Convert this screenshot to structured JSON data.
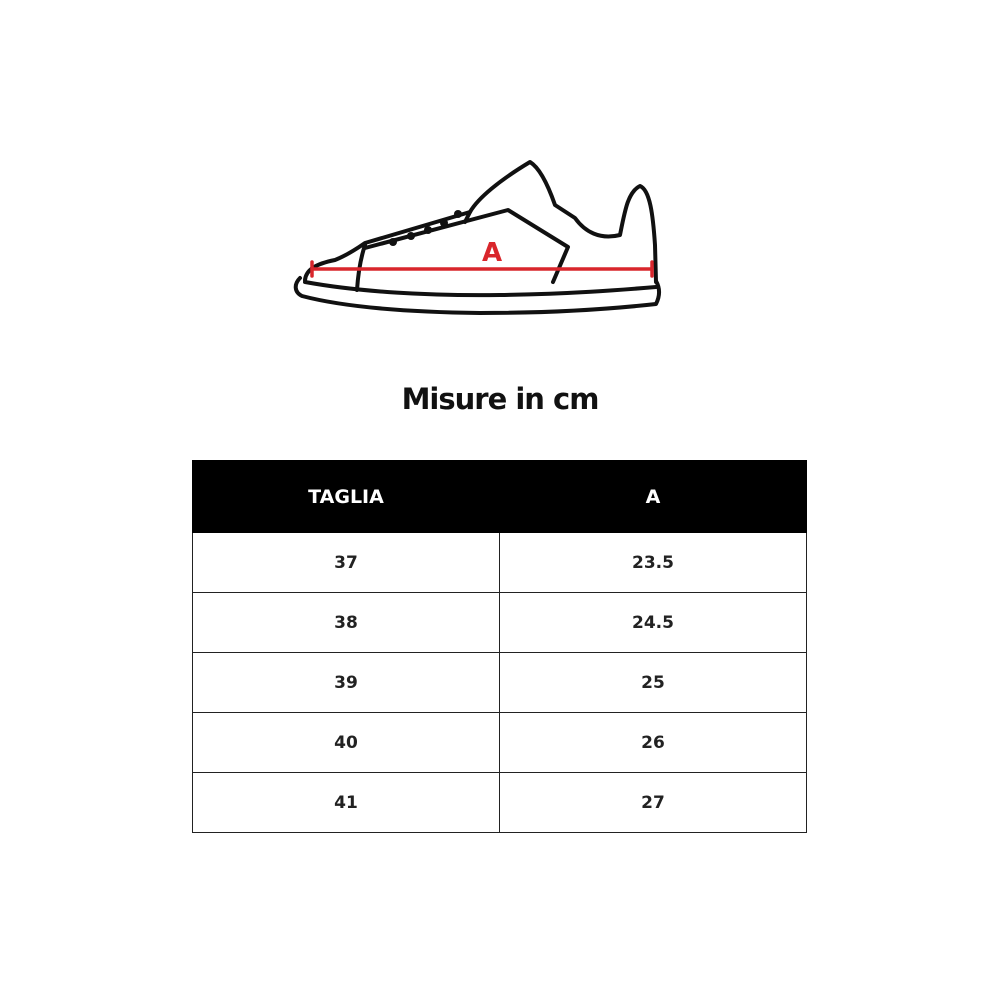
{
  "diagram": {
    "measure_label": "A",
    "measure_color": "#d9262c",
    "illustration": "sneaker-outline"
  },
  "title": "Misure in cm",
  "table": {
    "headers": [
      "TAGLIA",
      "A"
    ],
    "rows": [
      [
        "37",
        "23.5"
      ],
      [
        "38",
        "24.5"
      ],
      [
        "39",
        "25"
      ],
      [
        "40",
        "26"
      ],
      [
        "41",
        "27"
      ]
    ]
  }
}
